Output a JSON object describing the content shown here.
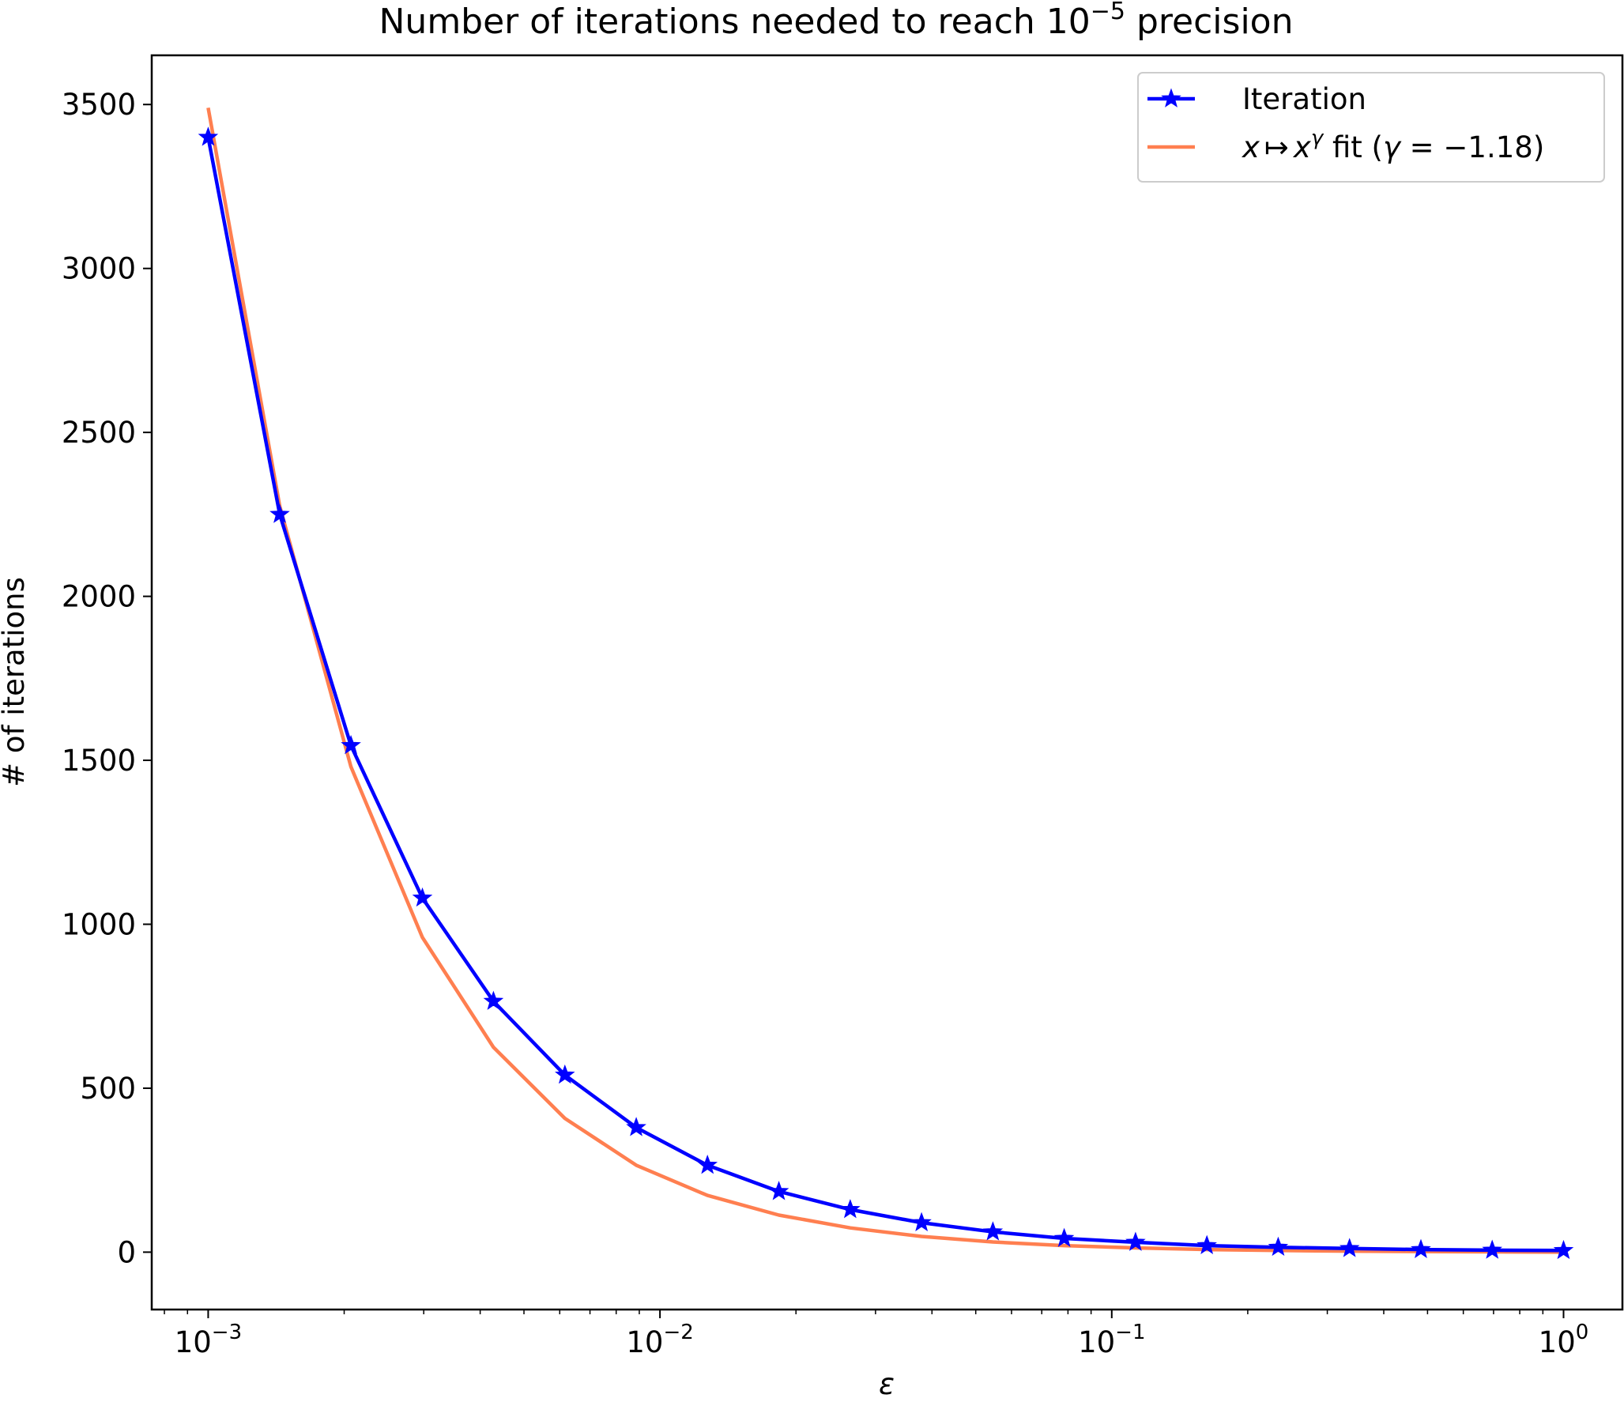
{
  "chart_data": {
    "type": "line",
    "title": "Number of iterations needed to reach 10",
    "title_exponent": "−5",
    "title_suffix": " precision",
    "xlabel": "ε",
    "ylabel": "# of iterations",
    "x_scale": "log",
    "xlim": [
      0.00075,
      1.35
    ],
    "ylim": [
      -175,
      3650
    ],
    "grid": false,
    "legend_position": "top-right",
    "x_ticks": [
      {
        "value": 0.001,
        "base": "10",
        "exp": "−3"
      },
      {
        "value": 0.01,
        "base": "10",
        "exp": "−2"
      },
      {
        "value": 0.1,
        "base": "10",
        "exp": "−1"
      },
      {
        "value": 1,
        "base": "10",
        "exp": "0"
      }
    ],
    "y_ticks": [
      0,
      500,
      1000,
      1500,
      2000,
      2500,
      3000,
      3500
    ],
    "x": [
      0.001,
      0.00144,
      0.00207,
      0.00298,
      0.00428,
      0.00616,
      0.00886,
      0.01274,
      0.01833,
      0.02637,
      0.03793,
      0.05456,
      0.07848,
      0.11288,
      0.16238,
      0.23357,
      0.33598,
      0.48329,
      0.69519,
      1.0
    ],
    "series": [
      {
        "name": "Iteration",
        "color": "#0000ff",
        "marker": "star",
        "values": [
          3400,
          2250,
          1545,
          1080,
          765,
          540,
          380,
          265,
          185,
          130,
          90,
          62,
          42,
          30,
          20,
          15,
          11,
          8,
          6,
          5
        ]
      },
      {
        "name": "x ↦ x^γ fit (γ = −1.18)",
        "color": "#ff7f50",
        "marker": "none",
        "values": [
          3490,
          2275,
          1480,
          960,
          625,
          408,
          265,
          173,
          113,
          74,
          48,
          31,
          20,
          13,
          8,
          5,
          3,
          2,
          1,
          0
        ]
      }
    ],
    "legend": {
      "iteration_label": "Iteration",
      "fit_x": "x",
      "fit_arrow": "↦",
      "fit_x2": "x",
      "fit_gamma": "γ",
      "fit_text": " fit (",
      "fit_gamma2": "γ",
      "fit_eq": " = −1.18)"
    }
  }
}
